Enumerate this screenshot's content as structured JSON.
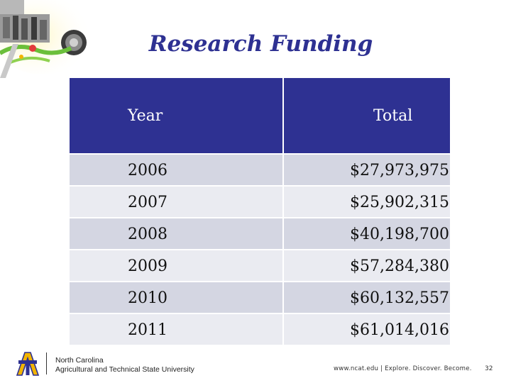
{
  "title": "Research Funding",
  "table": {
    "headers": [
      "Year",
      "Total"
    ],
    "rows": [
      {
        "year": "2006",
        "total": "$27,973,975"
      },
      {
        "year": "2007",
        "total": "$25,902,315"
      },
      {
        "year": "2008",
        "total": "$40,198,700"
      },
      {
        "year": "2009",
        "total": "$57,284,380"
      },
      {
        "year": "2010",
        "total": "$60,132,557"
      },
      {
        "year": "2011",
        "total": "$61,014,016"
      }
    ]
  },
  "footer": {
    "university_line1": "North Carolina",
    "university_line2": "Agricultural and Technical State University",
    "website": "www.ncat.edu | Explore. Discover. Become.",
    "page_number": "32"
  },
  "colors": {
    "header_fill": "#2e3192",
    "row_fill_odd": "#d4d6e2",
    "row_fill_even": "#eaebf1",
    "title_color": "#2e3192",
    "logo_gold": "#f2b400"
  },
  "icons": {
    "corner_art": "campus-collage-icon",
    "footer_logo": "aggie-at-logo-icon"
  }
}
